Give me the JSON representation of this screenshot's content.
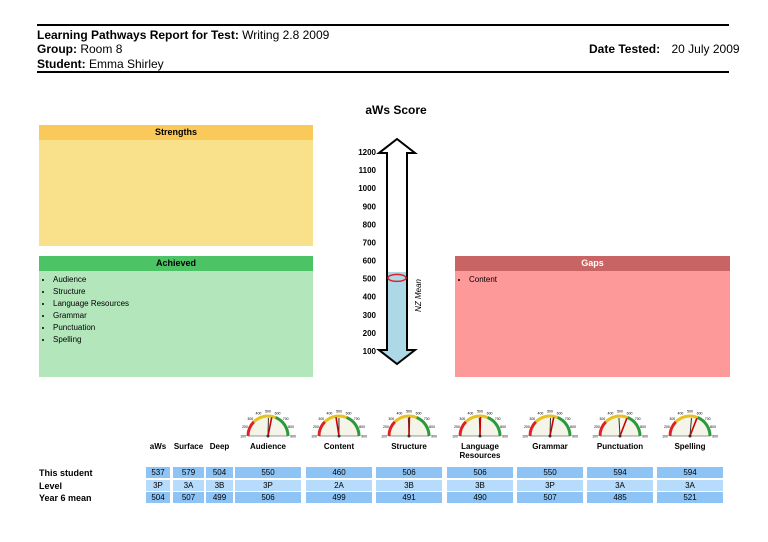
{
  "header": {
    "report_label": "Learning Pathways Report for Test:",
    "report_value": "Writing 2.8 2009",
    "group_label": "Group:",
    "group_value": "Room 8",
    "student_label": "Student:",
    "student_value": "Emma Shirley",
    "date_label": "Date Tested:",
    "date_value": "20 July 2009"
  },
  "panels": {
    "strengths": {
      "title": "Strengths",
      "items": [],
      "color": "#f9e08a",
      "header_color": "#f9c95a"
    },
    "achieved": {
      "title": "Achieved",
      "items": [
        "Audience",
        "Structure",
        "Language Resources",
        "Grammar",
        "Punctuation",
        "Spelling"
      ],
      "color": "#b4e6bc",
      "header_color": "#4cc465"
    },
    "gaps": {
      "title": "Gaps",
      "items": [
        "Content"
      ],
      "color": "#fd9999",
      "header_color": "#c86464"
    }
  },
  "chart_data": {
    "type": "thermometer",
    "title": "aWs Score",
    "ticks": [
      1200,
      1100,
      1000,
      900,
      800,
      700,
      600,
      500,
      400,
      300,
      200,
      100
    ],
    "ylim": [
      100,
      1200
    ],
    "value": 537,
    "mean_value": 504,
    "mean_label": "NZ Mean",
    "fill_color": "#add8e6"
  },
  "table": {
    "columns": [
      "aWs",
      "Surface",
      "Deep",
      "Audience",
      "Content",
      "Structure",
      "Language Resources",
      "Grammar",
      "Punctuation",
      "Spelling"
    ],
    "rows": [
      {
        "label": "This student",
        "values": [
          "537",
          "579",
          "504",
          "550",
          "460",
          "506",
          "506",
          "550",
          "594",
          "594"
        ]
      },
      {
        "label": "Level",
        "values": [
          "3P",
          "3A",
          "3B",
          "3P",
          "2A",
          "3B",
          "3B",
          "3P",
          "3A",
          "3A"
        ]
      },
      {
        "label": "Year 6 mean",
        "values": [
          "504",
          "507",
          "499",
          "506",
          "499",
          "491",
          "490",
          "507",
          "485",
          "521"
        ]
      }
    ]
  },
  "gauges": {
    "scale_labels": [
      "100",
      "200",
      "300",
      "400",
      "500",
      "600",
      "700",
      "800",
      "900"
    ],
    "items": [
      {
        "name": "Audience",
        "student": 550,
        "mean": 506
      },
      {
        "name": "Content",
        "student": 460,
        "mean": 499
      },
      {
        "name": "Structure",
        "student": 506,
        "mean": 491
      },
      {
        "name": "Language Resources",
        "student": 506,
        "mean": 490
      },
      {
        "name": "Grammar",
        "student": 550,
        "mean": 507
      },
      {
        "name": "Punctuation",
        "student": 594,
        "mean": 485
      },
      {
        "name": "Spelling",
        "student": 594,
        "mean": 521
      }
    ]
  }
}
